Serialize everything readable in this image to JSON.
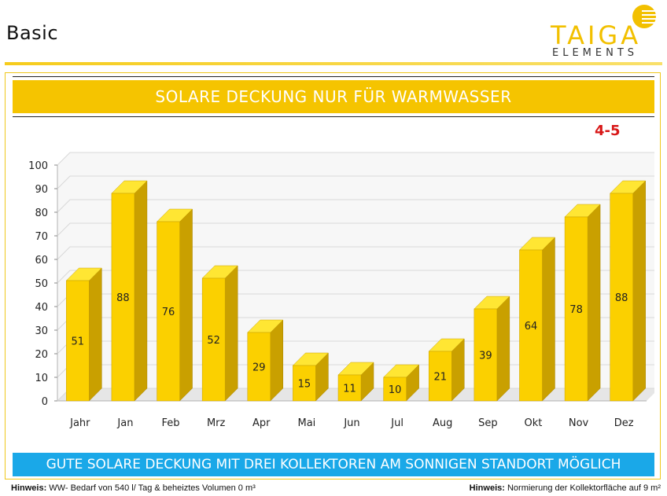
{
  "header": {
    "title": "Basic"
  },
  "logo": {
    "word": "TAIGA",
    "sub": "ELEMENTS"
  },
  "banner": {
    "text": "SOLARE DECKUNG NUR FÜR WARMWASSER"
  },
  "badge": "4-5",
  "footer_banner": {
    "text": "GUTE SOLARE DECKUNG MIT DREI KOLLEKTOREN AM SONNIGEN STANDORT MÖGLICH"
  },
  "notes": {
    "left_label": "Hinweis:",
    "left_text": "WW- Bedarf von 540 l/ Tag & beheiztes Volumen 0 m³",
    "right_label": "Hinweis:",
    "right_text": "Normierung der Kollektorfläche auf 9 m²"
  },
  "colors": {
    "accent": "#f5c400",
    "bar_front": "#fbd000",
    "bar_side": "#c9a000",
    "bar_top": "#ffe633",
    "info": "#1aa8e8",
    "badge": "#d81818"
  },
  "chart_data": {
    "type": "bar",
    "categories": [
      "Jahr",
      "Jan",
      "Feb",
      "Mrz",
      "Apr",
      "Mai",
      "Jun",
      "Jul",
      "Aug",
      "Sep",
      "Okt",
      "Nov",
      "Dez"
    ],
    "values": [
      51,
      88,
      76,
      52,
      29,
      15,
      11,
      10,
      21,
      39,
      64,
      78,
      88
    ],
    "yticks": [
      0,
      10,
      20,
      30,
      40,
      50,
      60,
      70,
      80,
      90,
      100
    ],
    "ylim": [
      0,
      100
    ],
    "grid": true,
    "data_labels": true,
    "style": "3d"
  }
}
